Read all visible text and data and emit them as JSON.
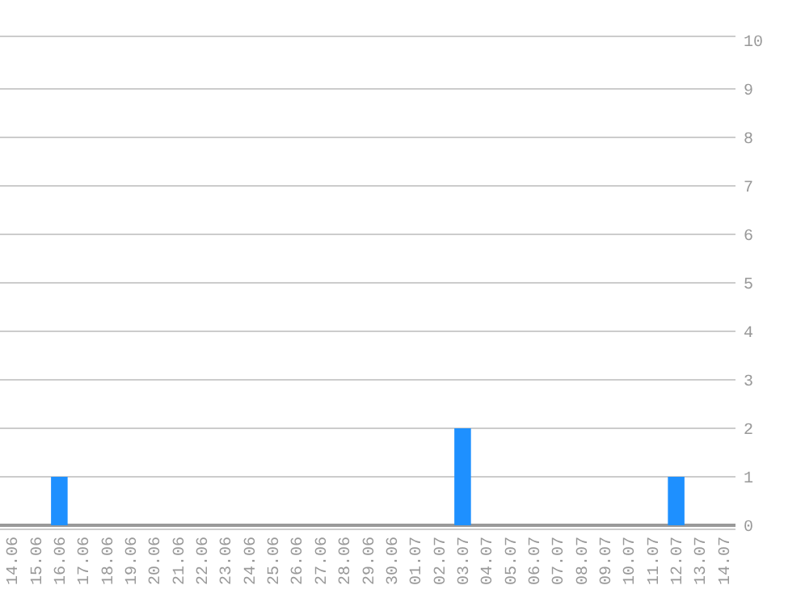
{
  "chart_data": {
    "type": "bar",
    "categories": [
      "14.06",
      "15.06",
      "16.06",
      "17.06",
      "18.06",
      "19.06",
      "20.06",
      "21.06",
      "22.06",
      "23.06",
      "24.06",
      "25.06",
      "26.06",
      "27.06",
      "28.06",
      "29.06",
      "30.06",
      "01.07",
      "02.07",
      "03.07",
      "04.07",
      "05.07",
      "06.07",
      "07.07",
      "08.07",
      "09.07",
      "10.07",
      "11.07",
      "12.07",
      "13.07",
      "14.07"
    ],
    "values": [
      0,
      0,
      1,
      0,
      0,
      0,
      0,
      0,
      0,
      0,
      0,
      0,
      0,
      0,
      0,
      0,
      0,
      0,
      0,
      2,
      0,
      0,
      0,
      0,
      0,
      0,
      0,
      0,
      1,
      0,
      0
    ],
    "color": "#1e90ff",
    "ylim": [
      0,
      10
    ],
    "yticks": [
      0,
      1,
      2,
      3,
      4,
      5,
      6,
      7,
      8,
      9,
      10
    ],
    "grid": "y"
  }
}
